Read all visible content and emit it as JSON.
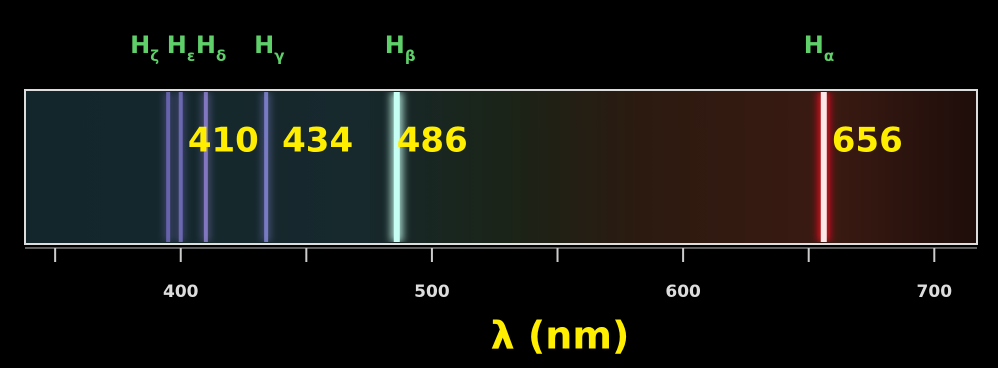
{
  "chart_data": {
    "type": "spectrum",
    "xlim": [
      338,
      717
    ],
    "xticks": [
      400,
      500,
      600,
      700
    ],
    "xminor": [
      350,
      450,
      550,
      650
    ],
    "xlabel": "λ (nm)",
    "lines": [
      {
        "symbol": "H",
        "sub": "ζ",
        "value": 395,
        "color": "#7a70c8"
      },
      {
        "symbol": "H",
        "sub": "ε",
        "value": 400,
        "color": "#7f76cf"
      },
      {
        "symbol": "H",
        "sub": "δ",
        "value": 410,
        "color": "#9a88e0"
      },
      {
        "symbol": "H",
        "sub": "γ",
        "value": 434,
        "color": "#8f8ee6"
      },
      {
        "symbol": "H",
        "sub": "β",
        "value": 486,
        "color": "#c8fff4"
      },
      {
        "symbol": "H",
        "sub": "α",
        "value": 656,
        "color": "#ffe8e8"
      }
    ],
    "value_labels": [
      null,
      null,
      "410",
      "434",
      "486",
      "656"
    ]
  }
}
